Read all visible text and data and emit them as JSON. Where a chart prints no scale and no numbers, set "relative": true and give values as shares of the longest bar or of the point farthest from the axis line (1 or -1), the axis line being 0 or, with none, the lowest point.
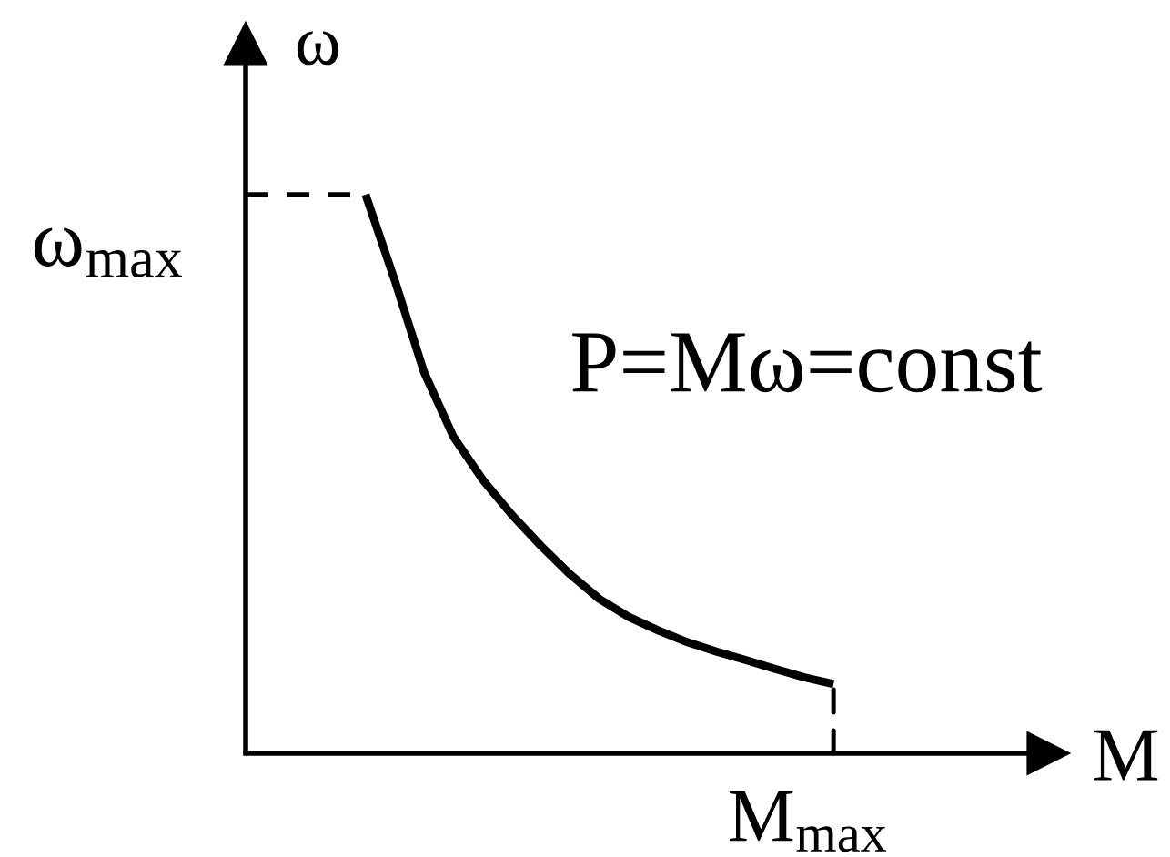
{
  "chart_data": {
    "type": "line",
    "xlabel": "M",
    "ylabel": "ω",
    "relative": true,
    "categories": [
      null,
      null,
      null,
      null,
      null,
      null,
      null,
      null,
      null,
      null,
      null,
      null,
      null,
      null,
      null,
      null,
      null,
      null,
      null,
      null,
      null
    ],
    "series": [
      {
        "color": "#000000",
        "values": [
          null,
          null,
          null,
          null,
          1.0,
          0.846,
          0.682,
          0.567,
          0.49,
          0.427,
          0.371,
          0.32,
          0.276,
          0.244,
          0.22,
          0.199,
          0.182,
          0.167,
          0.151,
          0.136,
          0.124
        ]
      }
    ],
    "ref_lines": [
      {
        "axis": "y",
        "value": 1,
        "label": "ω$_{max}$",
        "line_style": "dashed",
        "color": "#000000"
      }
    ],
    "annotations": [
      "P=Mω=const",
      {
        "text": "M$_{max}$",
        "y": 0.124
      }
    ]
  }
}
